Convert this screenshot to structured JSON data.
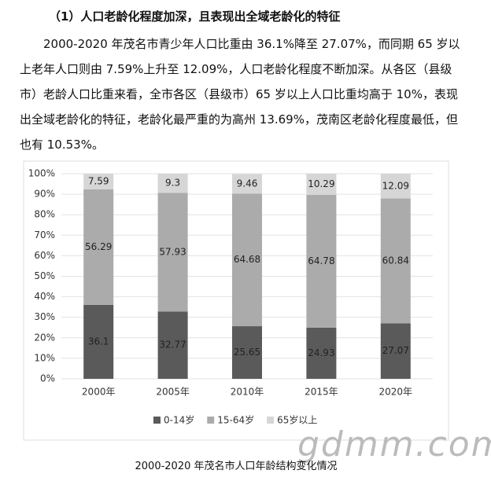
{
  "heading": "（1）人口老龄化程度加深，且表现出全域老龄化的特征",
  "paragraph": "2000-2020 年茂名市青少年人口比重由 36.1%降至 27.07%，而同期 65 岁以上老年人口则由 7.59%上升至 12.09%，人口老龄化程度不断加深。从各区（县级市）老龄人口比重来看，全市各区（县级市）65 岁以上人口比重均高于 10%，表现出全域老龄化的特征，老龄化最严重的为高州 13.69%，茂南区老龄化程度最低，但也有 10.53%。",
  "chart_data": {
    "type": "stacked_bar",
    "categories": [
      "2000年",
      "2005年",
      "2010年",
      "2015年",
      "2020年"
    ],
    "series": [
      {
        "name": "0-14岁",
        "color": "#5a5a5a",
        "values": [
          36.1,
          32.77,
          25.65,
          24.93,
          27.07
        ]
      },
      {
        "name": "15-64岁",
        "color": "#ababab",
        "values": [
          56.29,
          57.93,
          64.68,
          64.78,
          60.84
        ]
      },
      {
        "name": "65岁以上",
        "color": "#d6d6d6",
        "values": [
          7.59,
          9.3,
          9.46,
          10.29,
          12.09
        ]
      }
    ],
    "ylim": [
      0,
      100
    ],
    "yticks": [
      {
        "value": 0,
        "label": "0%"
      },
      {
        "value": 10,
        "label": "10%"
      },
      {
        "value": 20,
        "label": "20%"
      },
      {
        "value": 30,
        "label": "30%"
      },
      {
        "value": 40,
        "label": "40%"
      },
      {
        "value": 50,
        "label": "50%"
      },
      {
        "value": 60,
        "label": "60%"
      },
      {
        "value": 70,
        "label": "70%"
      },
      {
        "value": 80,
        "label": "80%"
      },
      {
        "value": 90,
        "label": "90%"
      },
      {
        "value": 100,
        "label": "100%"
      }
    ],
    "grid": true,
    "legend": "bottom"
  },
  "caption": "2000-2020 年茂名市人口年龄结构变化情况",
  "watermark": "gdmm.com"
}
